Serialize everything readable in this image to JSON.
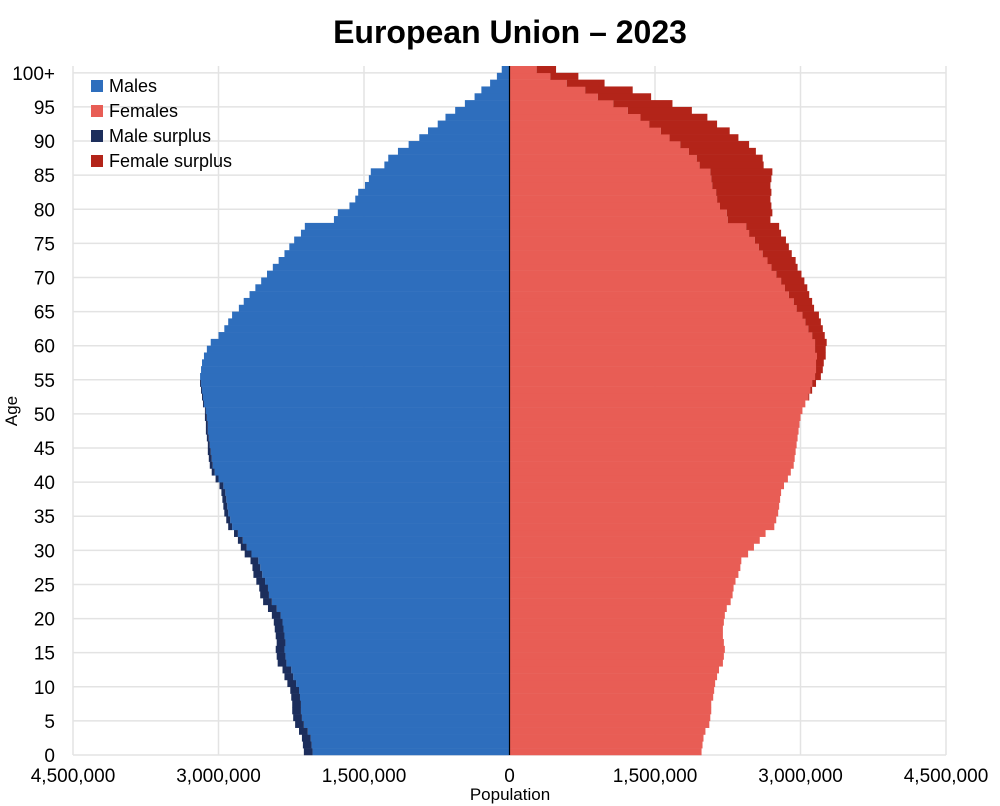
{
  "chart_data": {
    "type": "bar",
    "orientation": "horizontal",
    "title": "European Union – 2023",
    "xlabel": "Population",
    "ylabel": "Age",
    "xlim": [
      -4500000,
      4500000
    ],
    "ylim": [
      0,
      100
    ],
    "x_ticks": [
      -4500000,
      -3000000,
      -1500000,
      0,
      1500000,
      3000000,
      4500000
    ],
    "x_tick_labels": [
      "4,500,000",
      "3,000,000",
      "1,500,000",
      "0",
      "1,500,000",
      "3,000,000",
      "4,500,000"
    ],
    "y_ticks": [
      0,
      5,
      10,
      15,
      20,
      25,
      30,
      35,
      40,
      45,
      50,
      55,
      60,
      65,
      70,
      75,
      80,
      85,
      90,
      95,
      100
    ],
    "y_tick_labels": [
      "0",
      "5",
      "10",
      "15",
      "20",
      "25",
      "30",
      "35",
      "40",
      "45",
      "50",
      "55",
      "60",
      "65",
      "70",
      "75",
      "80",
      "85",
      "90",
      "95",
      "100+"
    ],
    "grid": true,
    "legend": {
      "position": "top-left",
      "entries": [
        {
          "label": "Males",
          "color": "#2e6ebd"
        },
        {
          "label": "Females",
          "color": "#e85d55"
        },
        {
          "label": "Male surplus",
          "color": "#1c2e5c"
        },
        {
          "label": "Female surplus",
          "color": "#b32419"
        }
      ]
    },
    "colors": {
      "males": "#2e6ebd",
      "females": "#e85d55",
      "male_surplus": "#1c2e5c",
      "female_surplus": "#b32419"
    },
    "ages": [
      0,
      1,
      2,
      3,
      4,
      5,
      6,
      7,
      8,
      9,
      10,
      11,
      12,
      13,
      14,
      15,
      16,
      17,
      18,
      19,
      20,
      21,
      22,
      23,
      24,
      25,
      26,
      27,
      28,
      29,
      30,
      31,
      32,
      33,
      34,
      35,
      36,
      37,
      38,
      39,
      40,
      41,
      42,
      43,
      44,
      45,
      46,
      47,
      48,
      49,
      50,
      51,
      52,
      53,
      54,
      55,
      56,
      57,
      58,
      59,
      60,
      61,
      62,
      63,
      64,
      65,
      66,
      67,
      68,
      69,
      70,
      71,
      72,
      73,
      74,
      75,
      76,
      77,
      78,
      79,
      80,
      81,
      82,
      83,
      84,
      85,
      86,
      87,
      88,
      89,
      90,
      91,
      92,
      93,
      94,
      95,
      96,
      97,
      98,
      99,
      100
    ],
    "series": [
      {
        "name": "Males",
        "values": [
          2030000,
          2040000,
          2050000,
          2080000,
          2120000,
          2140000,
          2150000,
          2150000,
          2160000,
          2170000,
          2200000,
          2230000,
          2250000,
          2300000,
          2310000,
          2320000,
          2310000,
          2320000,
          2330000,
          2340000,
          2360000,
          2400000,
          2450000,
          2480000,
          2490000,
          2520000,
          2550000,
          2570000,
          2590000,
          2660000,
          2710000,
          2750000,
          2800000,
          2860000,
          2880000,
          2900000,
          2910000,
          2920000,
          2930000,
          2950000,
          3000000,
          3040000,
          3060000,
          3070000,
          3080000,
          3090000,
          3100000,
          3110000,
          3110000,
          3120000,
          3130000,
          3150000,
          3160000,
          3170000,
          3180000,
          3190000,
          3180000,
          3170000,
          3150000,
          3120000,
          3080000,
          3000000,
          2940000,
          2900000,
          2860000,
          2790000,
          2740000,
          2680000,
          2620000,
          2560000,
          2500000,
          2440000,
          2380000,
          2320000,
          2270000,
          2220000,
          2150000,
          2110000,
          1810000,
          1770000,
          1650000,
          1590000,
          1560000,
          1490000,
          1450000,
          1430000,
          1290000,
          1250000,
          1150000,
          1040000,
          930000,
          840000,
          740000,
          660000,
          560000,
          460000,
          360000,
          290000,
          200000,
          130000,
          80000
        ]
      },
      {
        "name": "Females",
        "values": [
          1980000,
          1990000,
          2000000,
          2020000,
          2060000,
          2070000,
          2080000,
          2080000,
          2100000,
          2110000,
          2120000,
          2140000,
          2160000,
          2200000,
          2210000,
          2220000,
          2210000,
          2200000,
          2200000,
          2210000,
          2220000,
          2240000,
          2280000,
          2300000,
          2310000,
          2330000,
          2360000,
          2380000,
          2390000,
          2460000,
          2520000,
          2580000,
          2640000,
          2730000,
          2750000,
          2770000,
          2780000,
          2790000,
          2800000,
          2830000,
          2870000,
          2900000,
          2930000,
          2940000,
          2950000,
          2960000,
          2970000,
          2980000,
          2990000,
          3000000,
          3020000,
          3050000,
          3080000,
          3100000,
          3120000,
          3150000,
          3160000,
          3160000,
          3170000,
          3150000,
          3150000,
          3120000,
          3080000,
          3050000,
          3020000,
          2960000,
          2930000,
          2880000,
          2840000,
          2800000,
          2750000,
          2700000,
          2660000,
          2610000,
          2570000,
          2530000,
          2470000,
          2440000,
          2250000,
          2240000,
          2170000,
          2140000,
          2130000,
          2090000,
          2080000,
          2070000,
          1960000,
          1930000,
          1850000,
          1760000,
          1650000,
          1560000,
          1440000,
          1350000,
          1220000,
          1070000,
          910000,
          780000,
          590000,
          420000,
          280000
        ]
      },
      {
        "name": "Male surplus",
        "values": [
          90000,
          90000,
          90000,
          90000,
          90000,
          90000,
          90000,
          90000,
          90000,
          90000,
          90000,
          90000,
          90000,
          90000,
          90000,
          90000,
          90000,
          90000,
          90000,
          90000,
          90000,
          90000,
          90000,
          90000,
          90000,
          90000,
          90000,
          80000,
          80000,
          70000,
          60000,
          50000,
          40000,
          40000,
          40000,
          40000,
          40000,
          40000,
          40000,
          40000,
          30000,
          30000,
          30000,
          30000,
          30000,
          20000,
          20000,
          20000,
          20000,
          20000,
          10000,
          10000,
          10000,
          10000,
          10000,
          0,
          0,
          0,
          0,
          0,
          0,
          0,
          0,
          0,
          0,
          0,
          0,
          0,
          0,
          0,
          0,
          0,
          0,
          0,
          0,
          0,
          0,
          0,
          0,
          0,
          0,
          0,
          0,
          0,
          0,
          0,
          0,
          0,
          0,
          0,
          0,
          0,
          0,
          0,
          0,
          0,
          0,
          0,
          0,
          0,
          0
        ]
      },
      {
        "name": "Female surplus",
        "values": [
          0,
          0,
          0,
          0,
          0,
          0,
          0,
          0,
          0,
          0,
          0,
          0,
          0,
          0,
          0,
          0,
          0,
          0,
          0,
          0,
          0,
          0,
          0,
          0,
          0,
          0,
          0,
          0,
          0,
          0,
          0,
          0,
          0,
          0,
          0,
          0,
          0,
          0,
          0,
          0,
          0,
          0,
          0,
          0,
          0,
          0,
          0,
          0,
          0,
          0,
          0,
          0,
          10000,
          20000,
          40000,
          60000,
          70000,
          80000,
          90000,
          110000,
          120000,
          130000,
          150000,
          160000,
          170000,
          180000,
          190000,
          210000,
          230000,
          240000,
          260000,
          270000,
          290000,
          300000,
          310000,
          320000,
          330000,
          340000,
          440000,
          470000,
          530000,
          550000,
          570000,
          600000,
          620000,
          640000,
          660000,
          680000,
          690000,
          710000,
          710000,
          710000,
          700000,
          690000,
          660000,
          610000,
          550000,
          490000,
          390000,
          290000,
          200000
        ]
      }
    ]
  }
}
